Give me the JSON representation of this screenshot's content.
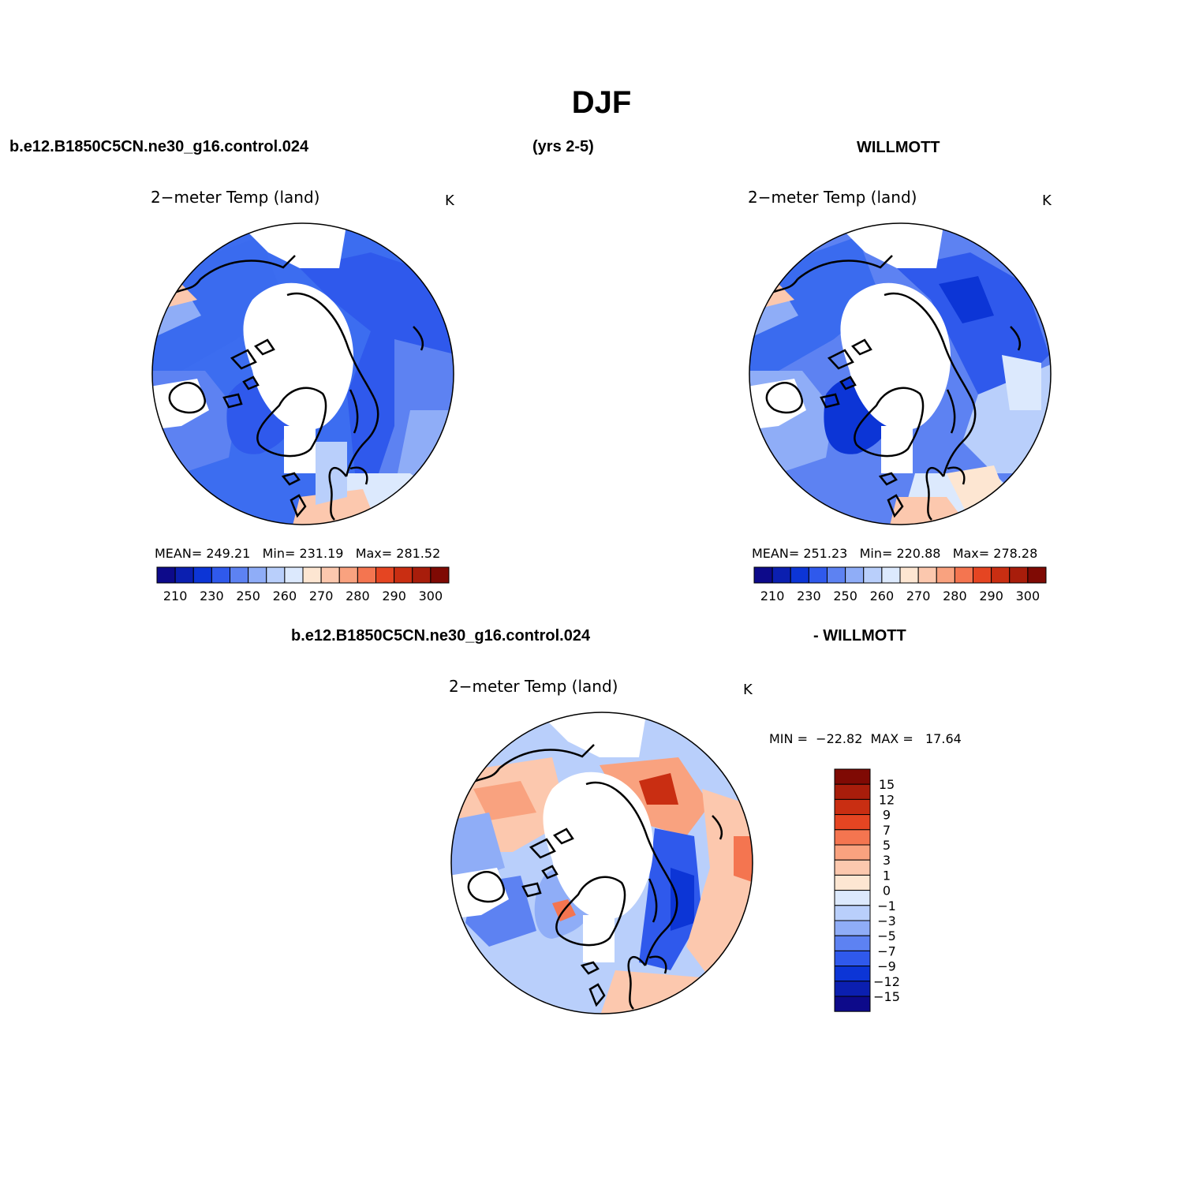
{
  "main_title": "DJF",
  "top_row": {
    "case_label": "b.e12.B1850C5CN.ne30_g16.control.024",
    "years_label": "(yrs 2-5)",
    "obs_label": "WILLMOTT"
  },
  "panels": [
    {
      "id": "model",
      "title": "2−meter Temp (land)",
      "units": "K",
      "stats": "MEAN= 249.21   Min= 231.19   Max= 281.52"
    },
    {
      "id": "obs",
      "title": "2−meter Temp (land)",
      "units": "K",
      "stats": "MEAN= 251.23   Min= 220.88   Max= 278.28"
    },
    {
      "id": "diff",
      "title": "2−meter Temp (land)",
      "units": "K",
      "stats": "MIN =  −22.82  MAX =   17.64"
    }
  ],
  "diff_header": {
    "case_label": "b.e12.B1850C5CN.ne30_g16.control.024",
    "obs_label": "- WILLMOTT"
  },
  "abs_colorbar": {
    "colors": [
      "#0d0a8a",
      "#0b1fb0",
      "#0c35d6",
      "#2f59ec",
      "#5d82f2",
      "#8fadf7",
      "#b9cffb",
      "#dce9fd",
      "#fde6d2",
      "#fcc8ae",
      "#f9a27f",
      "#f47550",
      "#e54522",
      "#c92e12",
      "#a81d0b",
      "#7f0a04"
    ],
    "tick_labels": [
      "210",
      "230",
      "250",
      "260",
      "270",
      "280",
      "290",
      "300"
    ]
  },
  "diff_colorbar": {
    "colors": [
      "#0d0a8a",
      "#0b1fb0",
      "#0c35d6",
      "#2f59ec",
      "#5d82f2",
      "#8fadf7",
      "#b9cffb",
      "#dce9fd",
      "#fde6d2",
      "#fcc8ae",
      "#f9a27f",
      "#f47550",
      "#e54522",
      "#c92e12",
      "#a81d0b",
      "#7f0a04"
    ],
    "tick_labels": [
      "−15",
      "−12",
      "−9",
      "−7",
      "−5",
      "−3",
      "−1",
      "0",
      "1",
      "3",
      "5",
      "7",
      "9",
      "12",
      "15"
    ]
  }
}
